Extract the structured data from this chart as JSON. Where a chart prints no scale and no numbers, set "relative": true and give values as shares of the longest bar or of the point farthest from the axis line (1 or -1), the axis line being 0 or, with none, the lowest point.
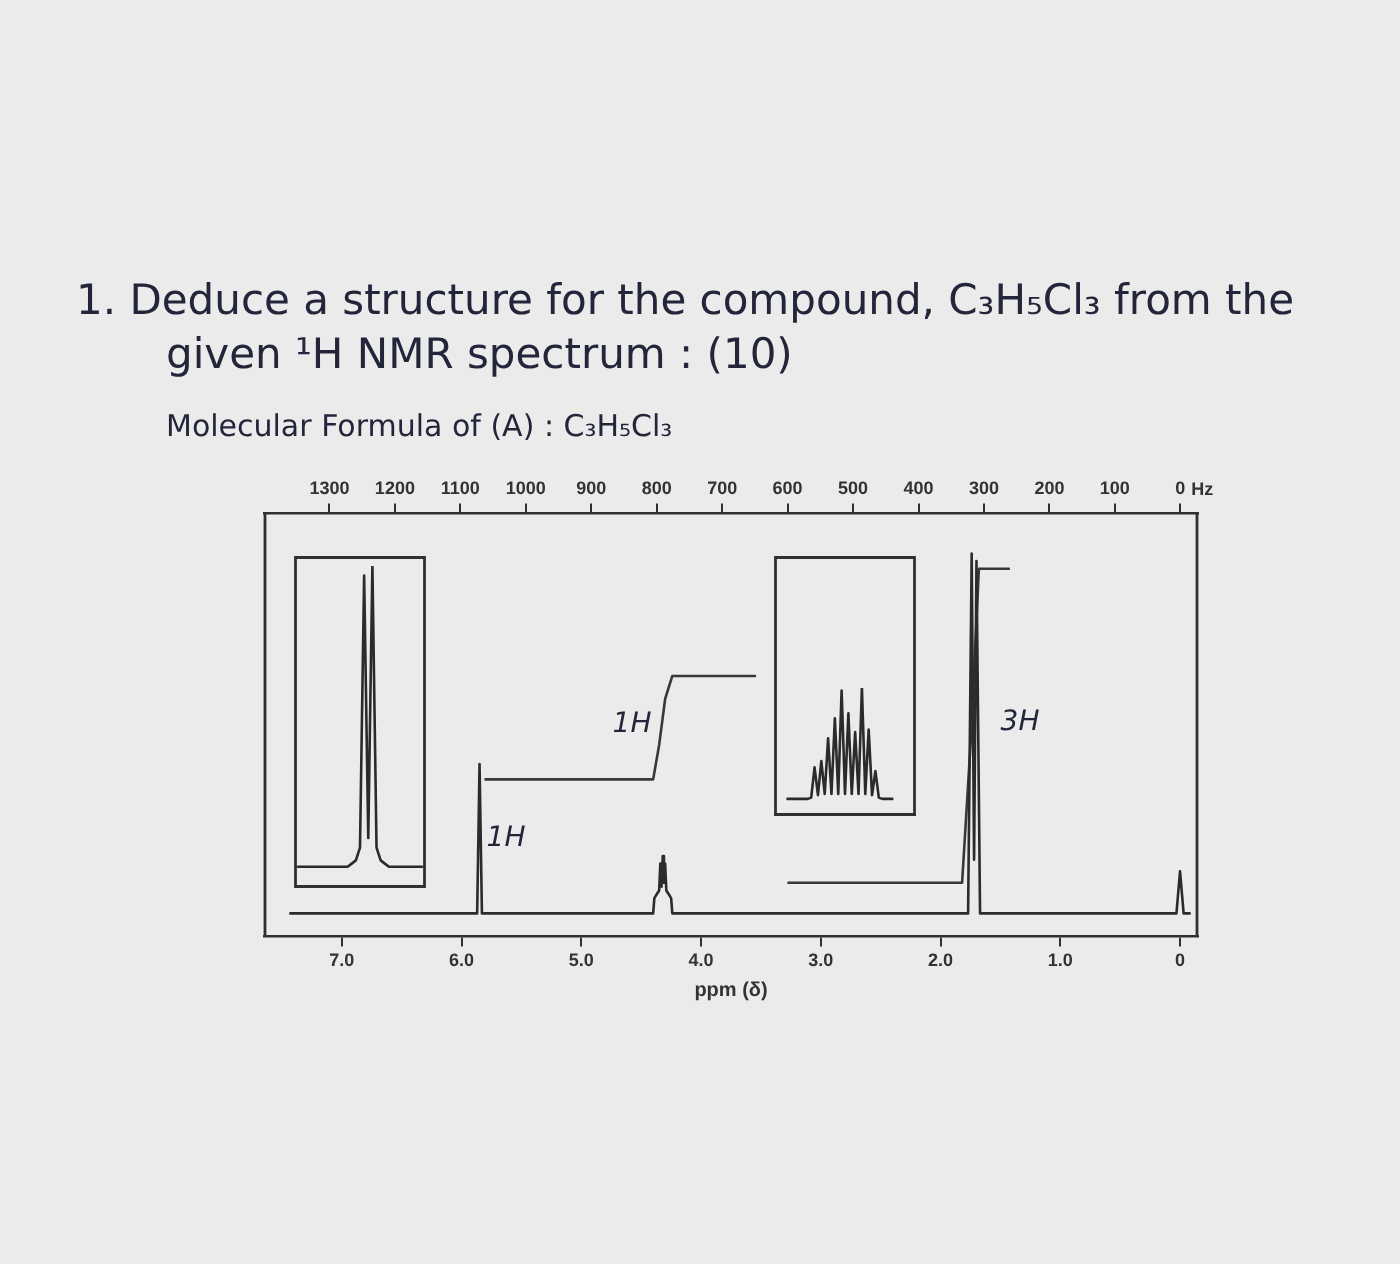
{
  "chart_data": [
    {
      "type": "line",
      "title": "1. Deduce a structure for the compound, C₃H₅Cl₃ from the given ¹H NMR spectrum : (10)",
      "subtitle": "Molecular Formula of (A) : C₃H₅Cl₃",
      "xlabel": "ppm (δ)",
      "x2label": "Hz",
      "relative": true,
      "grid": false,
      "marker": "none",
      "xlim": [
        7.65,
        -0.15
      ],
      "xticks": [
        {
          "value": 7,
          "label": "7.0"
        },
        {
          "value": 6,
          "label": "6.0"
        },
        {
          "value": 5,
          "label": "5.0"
        },
        {
          "value": 4,
          "label": "4.0"
        },
        {
          "value": 3,
          "label": "3.0"
        },
        {
          "value": 2,
          "label": "2.0"
        },
        {
          "value": 1,
          "label": "1.0"
        },
        0
      ],
      "x2lim": [
        1400,
        -27
      ],
      "x2ticks": [
        1300,
        1200,
        1100,
        1000,
        900,
        800,
        700,
        600,
        500,
        400,
        300,
        200,
        100,
        0
      ],
      "series": [
        {
          "color": "#2b2b2b",
          "x": [
            7.43,
            5.87,
            5.85,
            5.83,
            4.4,
            4.39,
            4.37,
            4.35,
            4.34,
            4.33,
            4.32,
            4.31,
            4.3,
            4.29,
            4.27,
            4.25,
            4.24,
            1.77,
            1.74,
            1.72,
            1.7,
            1.67,
            0.03,
            0,
            -0.03,
            -0.08
          ],
          "values": [
            0.06,
            0.06,
            0.45,
            0.06,
            0.06,
            0.1,
            0.11,
            0.12,
            0.19,
            0.13,
            0.21,
            0.14,
            0.19,
            0.12,
            0.11,
            0.1,
            0.06,
            0.06,
            1,
            0.2,
            0.98,
            0.06,
            0.06,
            0.17,
            0.06,
            0.06
          ]
        },
        {
          "color": "#383838",
          "x": [
            5.8,
            4.4,
            4.35,
            4.3,
            4.24,
            3.55,
            3.4,
            3.27,
            1.82,
            1.74,
            1.68,
            1.43
          ],
          "values": [
            0.41,
            0.41,
            0.5,
            0.62,
            0.68,
            0.68,
            null,
            0.14,
            0.14,
            0.55,
            0.96,
            0.96
          ]
        }
      ],
      "annotations": [
        "1H",
        "1H",
        "3H"
      ]
    },
    {
      "type": "line",
      "relative": true,
      "marker": "none",
      "categories": [
        null,
        null,
        null,
        null,
        null,
        null,
        null,
        null,
        null,
        null,
        null,
        null,
        null,
        null,
        null,
        null,
        null,
        null,
        null,
        null,
        null,
        null,
        null,
        null,
        null,
        null,
        null,
        null,
        null,
        null,
        null
      ],
      "series": [
        {
          "color": "#2b2b2b",
          "values": [
            0.06,
            0.06,
            0.06,
            0.06,
            0.06,
            0.06,
            0.06,
            0.06,
            0.06,
            0.06,
            0.06,
            0.06,
            0.06,
            0.07,
            0.08,
            0.12,
            0.97,
            0.15,
            1,
            0.12,
            0.08,
            0.07,
            0.06,
            0.06,
            0.06,
            0.06,
            0.06,
            0.06,
            0.06,
            0.06,
            0.06
          ]
        }
      ]
    },
    {
      "type": "line",
      "relative": true,
      "marker": "none",
      "categories": [
        null,
        null,
        null,
        null,
        null,
        null,
        null,
        null,
        null,
        null,
        null,
        null,
        null,
        null,
        null,
        null,
        null,
        null,
        null,
        null,
        null,
        null,
        null,
        null,
        null,
        null,
        null,
        null,
        null,
        null,
        null,
        null,
        null,
        null,
        null,
        null,
        null,
        null,
        null,
        null,
        null,
        null,
        null
      ],
      "series": [
        {
          "color": "#2b2b2b",
          "values": [
            null,
            null,
            null,
            null,
            0.12,
            0.12,
            0.12,
            0.12,
            0.12,
            0.12,
            0.12,
            0.13,
            0.37,
            0.15,
            0.42,
            0.16,
            0.6,
            0.16,
            0.76,
            0.16,
            0.98,
            0.16,
            0.8,
            0.16,
            0.65,
            0.16,
            1,
            0.16,
            0.67,
            0.15,
            0.34,
            0.13,
            0.12,
            0.12,
            0.12,
            0.12,
            null,
            null,
            null,
            null,
            null,
            null,
            null
          ]
        }
      ]
    }
  ]
}
